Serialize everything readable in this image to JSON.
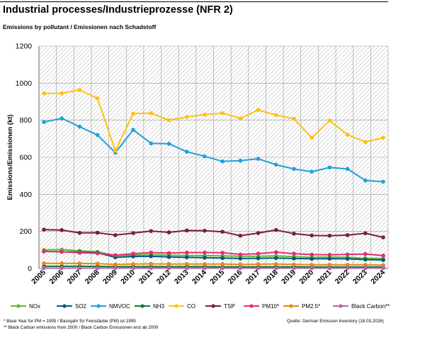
{
  "header": {
    "title": "Industrial processes/Industrieprozesse (NFR 2)",
    "subtitle": "Emissions by pollutant / Emissionen nach Schadstoff"
  },
  "footer": {
    "note1": "* Base Year for PM = 1995 / Basisjahr für Feinstäube (PM) ist 1995",
    "note2": "** Black Carbon emissions  from 2000 / Black Carbon Emissionen erst ab 2000",
    "source": "Quelle: German Emission Inventory (18.03.2026)"
  },
  "chart_data": {
    "type": "line",
    "ylabel": "Emissions/Emissionen (kt)",
    "xlabel": "",
    "ylim": [
      0,
      1200
    ],
    "yticks": [
      0,
      200,
      400,
      600,
      800,
      1000,
      1200
    ],
    "grid": true,
    "legend_position": "bottom",
    "categories": [
      "2005",
      "2006",
      "2007",
      "2008",
      "2009",
      "2010",
      "2011",
      "2012",
      "2013",
      "2014",
      "2015",
      "2016",
      "2017",
      "2018",
      "2019",
      "2020",
      "2021",
      "2022",
      "2023",
      "2024"
    ],
    "series": [
      {
        "name": "NOx",
        "color": "#5cb82e",
        "values": [
          100,
          102,
          95,
          90,
          70,
          72,
          75,
          72,
          70,
          70,
          68,
          66,
          66,
          68,
          64,
          60,
          62,
          60,
          55,
          54
        ]
      },
      {
        "name": "SO2",
        "color": "#005a78",
        "values": [
          92,
          90,
          88,
          85,
          60,
          65,
          66,
          62,
          60,
          58,
          56,
          54,
          55,
          56,
          54,
          52,
          53,
          52,
          48,
          46
        ]
      },
      {
        "name": "NMVOC",
        "color": "#1ea0dc",
        "values": [
          790,
          810,
          765,
          720,
          625,
          748,
          675,
          673,
          630,
          605,
          578,
          582,
          592,
          560,
          537,
          522,
          545,
          537,
          475,
          468
        ]
      },
      {
        "name": "NH3",
        "color": "#0f7832",
        "values": [
          12,
          12,
          12,
          11,
          10,
          10,
          10,
          10,
          10,
          10,
          9,
          9,
          9,
          9,
          9,
          8,
          8,
          8,
          8,
          8
        ]
      },
      {
        "name": "CO",
        "color": "#ffc012",
        "values": [
          945,
          945,
          963,
          918,
          635,
          836,
          838,
          800,
          818,
          830,
          838,
          810,
          855,
          828,
          808,
          705,
          798,
          722,
          683,
          705
        ]
      },
      {
        "name": "TSP",
        "color": "#781e3c",
        "values": [
          210,
          207,
          192,
          193,
          180,
          191,
          202,
          195,
          205,
          204,
          198,
          177,
          191,
          208,
          188,
          178,
          177,
          180,
          190,
          168
        ]
      },
      {
        "name": "PM10*",
        "color": "#e12d78",
        "values": [
          92,
          90,
          85,
          82,
          72,
          80,
          86,
          83,
          86,
          86,
          85,
          76,
          80,
          88,
          80,
          75,
          74,
          76,
          78,
          70
        ]
      },
      {
        "name": "PM2.5*",
        "color": "#e18c14",
        "values": [
          28,
          28,
          27,
          26,
          22,
          24,
          25,
          24,
          24,
          24,
          24,
          22,
          23,
          24,
          22,
          20,
          20,
          20,
          20,
          18
        ]
      },
      {
        "name": "Black Carbon**",
        "color": "#b464b4",
        "values": [
          2,
          2,
          2,
          2,
          2,
          2,
          2,
          2,
          2,
          2,
          2,
          2,
          2,
          2,
          2,
          2,
          2,
          2,
          2,
          2
        ]
      }
    ]
  }
}
